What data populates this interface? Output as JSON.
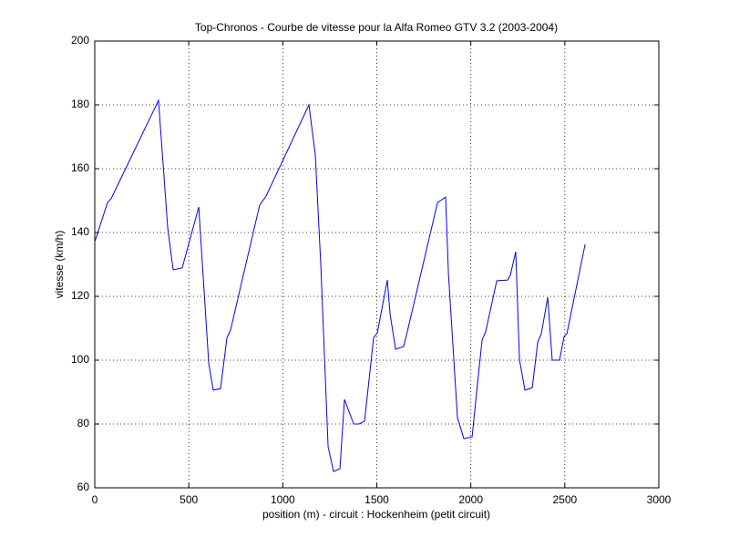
{
  "chart_data": {
    "type": "line",
    "title": "Top-Chronos - Courbe de vitesse pour la Alfa Romeo GTV 3.2 (2003-2004)",
    "x_label": "position (m) - circuit : Hockenheim (petit circuit)",
    "y_label": "vitesse (km/h)",
    "x": [
      0,
      68,
      87,
      339,
      388,
      417,
      465,
      553,
      606,
      630,
      669,
      703,
      722,
      877,
      911,
      1139,
      1173,
      1202,
      1241,
      1270,
      1304,
      1328,
      1377,
      1406,
      1435,
      1483,
      1503,
      1556,
      1571,
      1600,
      1643,
      1663,
      1823,
      1847,
      1866,
      1881,
      1929,
      1963,
      2007,
      2036,
      2060,
      2079,
      2138,
      2196,
      2210,
      2239,
      2259,
      2288,
      2327,
      2356,
      2375,
      2409,
      2433,
      2472,
      2496,
      2511,
      2608
    ],
    "series": [
      {
        "name": "vitesse",
        "color": "#0000ff",
        "values": [
          137.1,
          149.4,
          150.6,
          181.4,
          141.4,
          128.3,
          128.9,
          148,
          99.1,
          90.6,
          91.1,
          107,
          109.4,
          148.6,
          151.4,
          180,
          164.3,
          130,
          72.9,
          65.1,
          66,
          87.7,
          80,
          80,
          80.9,
          107,
          108.6,
          125.1,
          114.3,
          103.4,
          104.3,
          109.1,
          149.4,
          150.3,
          151.1,
          127.1,
          82,
          75.4,
          76,
          92.9,
          106.3,
          108.9,
          124.9,
          125.1,
          126.6,
          134,
          100,
          90.6,
          91.4,
          105.7,
          108.3,
          119.7,
          100,
          100,
          107.4,
          108.3,
          136.3
        ]
      }
    ],
    "xlim": [
      0,
      3000
    ],
    "xticks": [
      0,
      500,
      1000,
      1500,
      2000,
      2500,
      3000
    ],
    "ylim": [
      60,
      200
    ],
    "yticks": [
      60,
      80,
      100,
      120,
      140,
      160,
      180,
      200
    ],
    "grid": true
  }
}
